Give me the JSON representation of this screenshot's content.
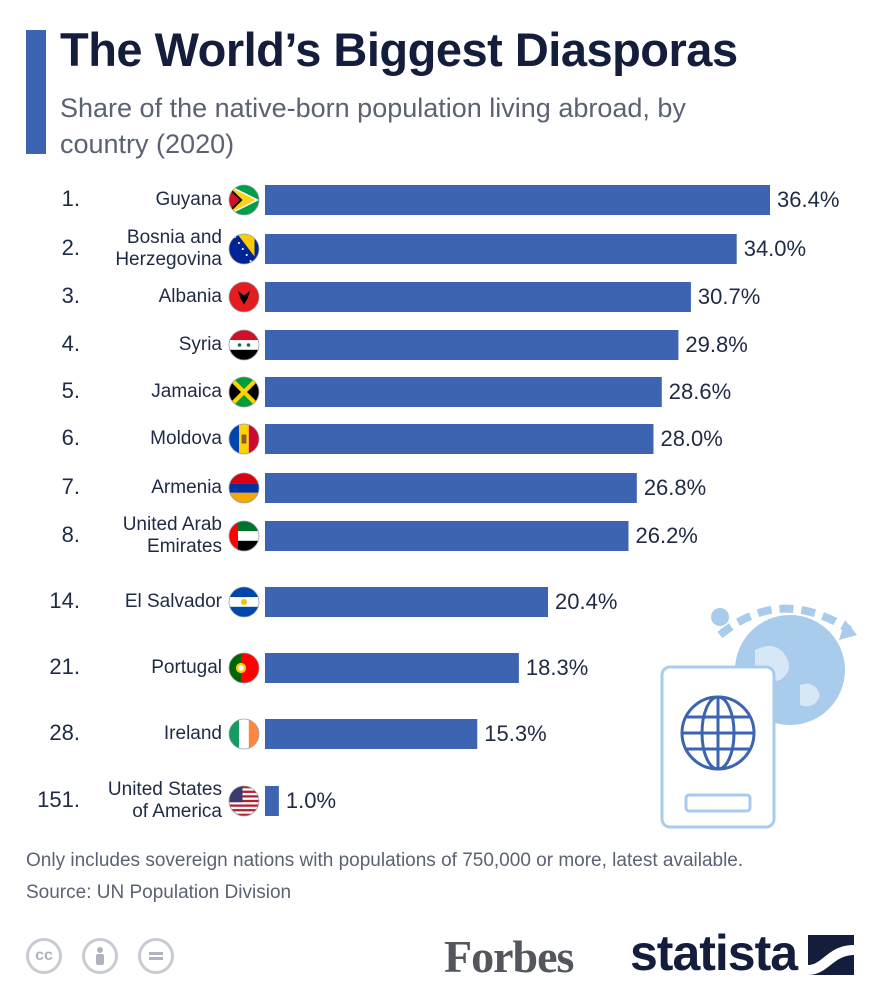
{
  "title": "The World’s Biggest Diasporas",
  "subtitle": "Share of the native-born population living abroad, by country (2020)",
  "chart_data": {
    "type": "bar",
    "orientation": "horizontal",
    "title": "The World’s Biggest Diasporas",
    "subtitle": "Share of the native-born population living abroad, by country (2020)",
    "xlabel": "",
    "ylabel": "",
    "xlim": [
      0,
      36.4
    ],
    "grid": false,
    "series": [
      {
        "name": "Share of native-born population living abroad (%)",
        "color": "#3c64b1"
      }
    ],
    "rows": [
      {
        "rank": "1.",
        "country": [
          "Guyana"
        ],
        "value": 36.4,
        "label": "36.4%",
        "flag": "guyana-flag"
      },
      {
        "rank": "2.",
        "country": [
          "Bosnia and",
          "Herzegovina"
        ],
        "value": 34.0,
        "label": "34.0%",
        "flag": "bosnia-herzegovina-flag"
      },
      {
        "rank": "3.",
        "country": [
          "Albania"
        ],
        "value": 30.7,
        "label": "30.7%",
        "flag": "albania-flag"
      },
      {
        "rank": "4.",
        "country": [
          "Syria"
        ],
        "value": 29.8,
        "label": "29.8%",
        "flag": "syria-flag"
      },
      {
        "rank": "5.",
        "country": [
          "Jamaica"
        ],
        "value": 28.6,
        "label": "28.6%",
        "flag": "jamaica-flag"
      },
      {
        "rank": "6.",
        "country": [
          "Moldova"
        ],
        "value": 28.0,
        "label": "28.0%",
        "flag": "moldova-flag"
      },
      {
        "rank": "7.",
        "country": [
          "Armenia"
        ],
        "value": 26.8,
        "label": "26.8%",
        "flag": "armenia-flag"
      },
      {
        "rank": "8.",
        "country": [
          "United Arab",
          "Emirates"
        ],
        "value": 26.2,
        "label": "26.2%",
        "flag": "uae-flag"
      },
      {
        "rank": "14.",
        "country": [
          "El Salvador"
        ],
        "value": 20.4,
        "label": "20.4%",
        "flag": "el-salvador-flag"
      },
      {
        "rank": "21.",
        "country": [
          "Portugal"
        ],
        "value": 18.3,
        "label": "18.3%",
        "flag": "portugal-flag"
      },
      {
        "rank": "28.",
        "country": [
          "Ireland"
        ],
        "value": 15.3,
        "label": "15.3%",
        "flag": "ireland-flag"
      },
      {
        "rank": "151.",
        "country": [
          "United States",
          "of America"
        ],
        "value": 1.0,
        "label": "1.0%",
        "flag": "usa-flag"
      }
    ]
  },
  "footnote": "Only includes sovereign nations with populations of 750,000 or more, latest available.",
  "source": "Source: UN Population Division",
  "license_icons": {
    "cc": "cc",
    "by": "by-person-icon",
    "nd": "nd-equals-icon"
  },
  "logos": {
    "forbes": "Forbes",
    "statista": "statista"
  },
  "colors": {
    "bar": "#3c64b1",
    "accent": "#3c64b1",
    "title": "#141d3c",
    "text": "#1f2a44",
    "muted": "#5b6272",
    "decoration": "#a9cbec"
  }
}
